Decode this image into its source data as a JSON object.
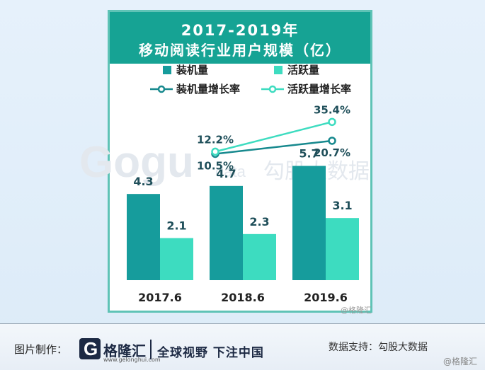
{
  "chart_data": {
    "type": "bar",
    "title": "2017-2019年",
    "subtitle": "移动阅读行业用户规模（亿）",
    "categories": [
      "2017.6",
      "2018.6",
      "2019.6"
    ],
    "series": [
      {
        "name": "装机量",
        "values": [
          4.3,
          4.7,
          5.7
        ],
        "labels": [
          "4.3",
          "4.7",
          "5.7"
        ],
        "color": "#169c9c"
      },
      {
        "name": "活跃量",
        "values": [
          2.1,
          2.3,
          3.1
        ],
        "labels": [
          "2.1",
          "2.3",
          "3.1"
        ],
        "color": "#3ddcc0"
      }
    ],
    "growth_series": [
      {
        "name": "装机量增长率",
        "categories": [
          "2018.6",
          "2019.6"
        ],
        "values": [
          10.5,
          20.7
        ],
        "labels": [
          "10.5%",
          "20.7%"
        ],
        "color": "#17898e"
      },
      {
        "name": "活跃量增长率",
        "categories": [
          "2018.6",
          "2019.6"
        ],
        "values": [
          12.2,
          35.4
        ],
        "labels": [
          "12.2%",
          "35.4%"
        ],
        "color": "#3ddcc0"
      }
    ],
    "ylim": [
      0,
      6
    ],
    "legend": "top",
    "grid": false
  },
  "watermark": {
    "brand": "Gogu",
    "suffix": "data",
    "cn": "勾股大数据"
  },
  "card_watermark": "@格隆汇",
  "footer": {
    "maker_label": "图片制作：",
    "logo_letter": "G",
    "brand_name": "格隆汇",
    "brand_url": "www.gelonghui.com",
    "slogan": "全球视野 下注中国",
    "support": "数据支持：勾股大数据",
    "watermark": "@格隆汇"
  }
}
